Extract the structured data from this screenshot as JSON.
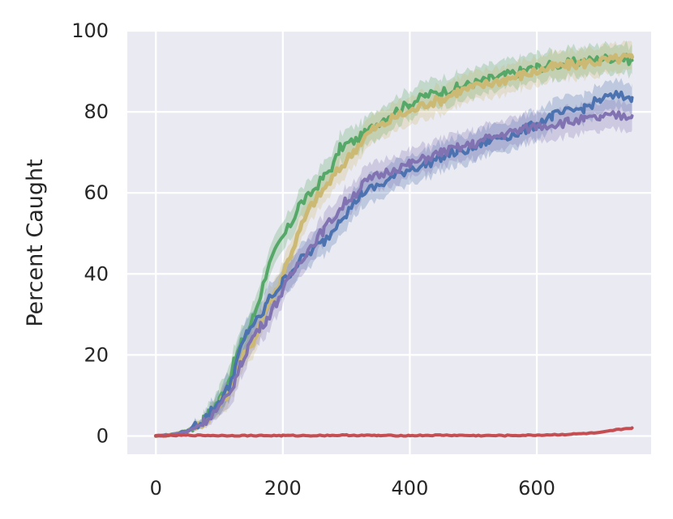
{
  "chart_data": {
    "type": "line",
    "title": "",
    "xlabel": "",
    "ylabel": "Percent Caught",
    "xlim": [
      -45,
      780
    ],
    "ylim": [
      -4.5,
      100
    ],
    "xticks": [
      0,
      200,
      400,
      600
    ],
    "yticks": [
      0,
      20,
      40,
      60,
      80,
      100
    ],
    "grid": true,
    "background": "#eaeaf2",
    "series": [
      {
        "color": "#55a868",
        "points": [
          [
            0,
            0
          ],
          [
            25,
            0.4
          ],
          [
            50,
            1.4
          ],
          [
            75,
            4
          ],
          [
            100,
            9
          ],
          [
            115,
            14
          ],
          [
            125,
            19
          ],
          [
            135,
            23
          ],
          [
            145,
            26
          ],
          [
            155,
            30
          ],
          [
            165,
            35
          ],
          [
            175,
            41
          ],
          [
            190,
            46
          ],
          [
            200,
            49
          ],
          [
            215,
            53
          ],
          [
            225,
            57
          ],
          [
            240,
            59
          ],
          [
            255,
            62
          ],
          [
            265,
            64
          ],
          [
            280,
            67
          ],
          [
            290,
            71
          ],
          [
            300,
            72
          ],
          [
            315,
            73
          ],
          [
            325,
            74
          ],
          [
            340,
            76
          ],
          [
            355,
            78
          ],
          [
            375,
            80
          ],
          [
            400,
            82
          ],
          [
            425,
            84
          ],
          [
            450,
            85
          ],
          [
            475,
            86
          ],
          [
            500,
            87
          ],
          [
            525,
            88
          ],
          [
            550,
            89
          ],
          [
            575,
            90
          ],
          [
            600,
            91
          ],
          [
            625,
            91.5
          ],
          [
            650,
            92
          ],
          [
            675,
            92.5
          ],
          [
            700,
            93
          ],
          [
            725,
            93.5
          ],
          [
            750,
            92.7
          ]
        ]
      },
      {
        "color": "#ccb974",
        "points": [
          [
            0,
            0
          ],
          [
            25,
            0.3
          ],
          [
            50,
            1.2
          ],
          [
            75,
            3.5
          ],
          [
            100,
            7.5
          ],
          [
            115,
            11
          ],
          [
            125,
            15
          ],
          [
            135,
            19
          ],
          [
            145,
            21
          ],
          [
            155,
            24
          ],
          [
            165,
            28
          ],
          [
            175,
            32
          ],
          [
            190,
            36
          ],
          [
            200,
            40
          ],
          [
            215,
            46
          ],
          [
            230,
            52
          ],
          [
            245,
            57
          ],
          [
            255,
            59
          ],
          [
            270,
            62
          ],
          [
            285,
            65
          ],
          [
            300,
            68
          ],
          [
            315,
            71
          ],
          [
            330,
            74
          ],
          [
            345,
            76
          ],
          [
            360,
            77
          ],
          [
            380,
            79
          ],
          [
            400,
            80
          ],
          [
            425,
            82
          ],
          [
            450,
            83
          ],
          [
            475,
            85
          ],
          [
            500,
            86
          ],
          [
            525,
            87
          ],
          [
            550,
            88
          ],
          [
            575,
            89
          ],
          [
            600,
            90
          ],
          [
            625,
            91
          ],
          [
            650,
            91.5
          ],
          [
            675,
            92
          ],
          [
            700,
            92.5
          ],
          [
            725,
            93
          ],
          [
            750,
            93.5
          ]
        ]
      },
      {
        "color": "#4c72b0",
        "points": [
          [
            0,
            0
          ],
          [
            25,
            0.3
          ],
          [
            50,
            1.2
          ],
          [
            75,
            4
          ],
          [
            100,
            8.5
          ],
          [
            115,
            12
          ],
          [
            125,
            17
          ],
          [
            135,
            22
          ],
          [
            145,
            26
          ],
          [
            155,
            28
          ],
          [
            165,
            29
          ],
          [
            175,
            33
          ],
          [
            190,
            36
          ],
          [
            200,
            38
          ],
          [
            215,
            41
          ],
          [
            225,
            43
          ],
          [
            240,
            45
          ],
          [
            255,
            47
          ],
          [
            265,
            48
          ],
          [
            280,
            51
          ],
          [
            290,
            54
          ],
          [
            300,
            55
          ],
          [
            315,
            58
          ],
          [
            325,
            60
          ],
          [
            340,
            61
          ],
          [
            355,
            62
          ],
          [
            375,
            64
          ],
          [
            400,
            66
          ],
          [
            425,
            67
          ],
          [
            450,
            69
          ],
          [
            475,
            70
          ],
          [
            500,
            71
          ],
          [
            525,
            73
          ],
          [
            550,
            74
          ],
          [
            575,
            75
          ],
          [
            600,
            77
          ],
          [
            625,
            79
          ],
          [
            650,
            80
          ],
          [
            675,
            81
          ],
          [
            700,
            83
          ],
          [
            725,
            84
          ],
          [
            750,
            83.5
          ]
        ]
      },
      {
        "color": "#8172b2",
        "points": [
          [
            0,
            0
          ],
          [
            25,
            0.3
          ],
          [
            50,
            1.1
          ],
          [
            75,
            3.5
          ],
          [
            100,
            7
          ],
          [
            115,
            10
          ],
          [
            125,
            14
          ],
          [
            135,
            18
          ],
          [
            145,
            22
          ],
          [
            155,
            25
          ],
          [
            165,
            27
          ],
          [
            175,
            29
          ],
          [
            190,
            33
          ],
          [
            200,
            36
          ],
          [
            215,
            40
          ],
          [
            225,
            43
          ],
          [
            240,
            46
          ],
          [
            255,
            49
          ],
          [
            265,
            51
          ],
          [
            280,
            54
          ],
          [
            290,
            56
          ],
          [
            300,
            58
          ],
          [
            315,
            60
          ],
          [
            325,
            62
          ],
          [
            340,
            63.5
          ],
          [
            355,
            64.5
          ],
          [
            375,
            66
          ],
          [
            400,
            67
          ],
          [
            425,
            68.5
          ],
          [
            450,
            70
          ],
          [
            475,
            71
          ],
          [
            500,
            72
          ],
          [
            525,
            73.5
          ],
          [
            550,
            74.5
          ],
          [
            575,
            75.5
          ],
          [
            600,
            76.5
          ],
          [
            625,
            77
          ],
          [
            650,
            77.5
          ],
          [
            675,
            78
          ],
          [
            700,
            78.5
          ],
          [
            725,
            79
          ],
          [
            750,
            79
          ]
        ]
      },
      {
        "color": "#c44e52",
        "points": [
          [
            0,
            0
          ],
          [
            50,
            0.2
          ],
          [
            100,
            0.1
          ],
          [
            150,
            0.1
          ],
          [
            200,
            0.1
          ],
          [
            250,
            0.1
          ],
          [
            300,
            0.2
          ],
          [
            350,
            0.1
          ],
          [
            400,
            0.1
          ],
          [
            450,
            0.2
          ],
          [
            500,
            0.1
          ],
          [
            550,
            0.1
          ],
          [
            600,
            0.2
          ],
          [
            650,
            0.4
          ],
          [
            700,
            0.8
          ],
          [
            725,
            1.5
          ],
          [
            750,
            2
          ]
        ]
      }
    ]
  }
}
